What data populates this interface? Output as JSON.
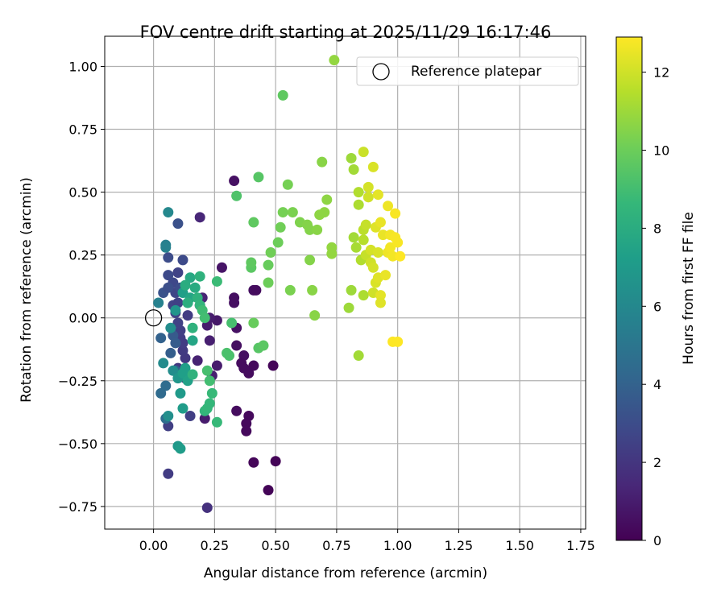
{
  "chart_data": {
    "type": "scatter",
    "title": "FOV centre drift starting at 2025/11/29 16:17:46",
    "xlabel": "Angular distance from reference (arcmin)",
    "ylabel": "Rotation from reference (arcmin)",
    "xlim": [
      -0.2,
      1.77
    ],
    "ylim": [
      -0.84,
      1.12
    ],
    "xticks": [
      0.0,
      0.25,
      0.5,
      0.75,
      1.0,
      1.25,
      1.5,
      1.75
    ],
    "xtick_labels": [
      "0.00",
      "0.25",
      "0.50",
      "0.75",
      "1.00",
      "1.25",
      "1.50",
      "1.75"
    ],
    "yticks": [
      -0.75,
      -0.5,
      -0.25,
      0.0,
      0.25,
      0.5,
      0.75,
      1.0
    ],
    "ytick_labels": [
      "−0.75",
      "−0.50",
      "−0.25",
      "0.00",
      "0.25",
      "0.50",
      "0.75",
      "1.00"
    ],
    "grid": true,
    "legend": {
      "position": "top-right",
      "entries": [
        "Reference platepar"
      ]
    },
    "reference_point": {
      "x": 0.0,
      "y": 0.0,
      "label": "Reference platepar"
    },
    "colorbar": {
      "label": "Hours from first FF file",
      "range": [
        0,
        12.9
      ],
      "ticks": [
        0,
        2,
        4,
        6,
        8,
        10,
        12
      ],
      "tick_labels": [
        "0",
        "2",
        "4",
        "6",
        "8",
        "10",
        "12"
      ],
      "colormap": "viridis"
    },
    "points": [
      {
        "x": 0.33,
        "y": 0.545,
        "h": 0.6
      },
      {
        "x": 0.28,
        "y": 0.2,
        "h": 0.7
      },
      {
        "x": 0.33,
        "y": 0.08,
        "h": 0.5
      },
      {
        "x": 0.33,
        "y": 0.06,
        "h": 0.5
      },
      {
        "x": 0.34,
        "y": -0.04,
        "h": 0.6
      },
      {
        "x": 0.37,
        "y": -0.15,
        "h": 0.5
      },
      {
        "x": 0.34,
        "y": -0.11,
        "h": 0.5
      },
      {
        "x": 0.36,
        "y": -0.18,
        "h": 0.4
      },
      {
        "x": 0.37,
        "y": -0.2,
        "h": 0.4
      },
      {
        "x": 0.39,
        "y": -0.22,
        "h": 0.4
      },
      {
        "x": 0.41,
        "y": -0.19,
        "h": 0.3
      },
      {
        "x": 0.41,
        "y": 0.11,
        "h": 0.5
      },
      {
        "x": 0.42,
        "y": 0.11,
        "h": 0.4
      },
      {
        "x": 0.39,
        "y": -0.39,
        "h": 0.3
      },
      {
        "x": 0.38,
        "y": -0.42,
        "h": 0.3
      },
      {
        "x": 0.38,
        "y": -0.45,
        "h": 0.3
      },
      {
        "x": 0.34,
        "y": -0.37,
        "h": 0.4
      },
      {
        "x": 0.41,
        "y": -0.575,
        "h": 0.2
      },
      {
        "x": 0.5,
        "y": -0.57,
        "h": 0.1
      },
      {
        "x": 0.47,
        "y": -0.685,
        "h": 0.1
      },
      {
        "x": 0.49,
        "y": -0.19,
        "h": 0.2
      },
      {
        "x": 0.26,
        "y": -0.01,
        "h": 0.8
      },
      {
        "x": 0.23,
        "y": 0.0,
        "h": 1.0
      },
      {
        "x": 0.22,
        "y": -0.03,
        "h": 1.0
      },
      {
        "x": 0.23,
        "y": -0.09,
        "h": 1.1
      },
      {
        "x": 0.26,
        "y": -0.19,
        "h": 1.0
      },
      {
        "x": 0.24,
        "y": -0.23,
        "h": 1.1
      },
      {
        "x": 0.21,
        "y": -0.4,
        "h": 1.0
      },
      {
        "x": 0.18,
        "y": -0.17,
        "h": 1.2
      },
      {
        "x": 0.19,
        "y": 0.05,
        "h": 1.2
      },
      {
        "x": 0.2,
        "y": 0.08,
        "h": 1.3
      },
      {
        "x": 0.19,
        "y": 0.4,
        "h": 1.4
      },
      {
        "x": 0.22,
        "y": -0.755,
        "h": 1.8
      },
      {
        "x": 0.06,
        "y": -0.62,
        "h": 2.3
      },
      {
        "x": 0.06,
        "y": -0.43,
        "h": 2.4
      },
      {
        "x": 0.15,
        "y": -0.39,
        "h": 2.4
      },
      {
        "x": 0.13,
        "y": -0.24,
        "h": 2.0
      },
      {
        "x": 0.1,
        "y": -0.2,
        "h": 2.1
      },
      {
        "x": 0.13,
        "y": -0.16,
        "h": 2.1
      },
      {
        "x": 0.12,
        "y": -0.13,
        "h": 2.2
      },
      {
        "x": 0.12,
        "y": -0.1,
        "h": 2.3
      },
      {
        "x": 0.11,
        "y": -0.08,
        "h": 2.3
      },
      {
        "x": 0.11,
        "y": -0.05,
        "h": 2.4
      },
      {
        "x": 0.1,
        "y": -0.02,
        "h": 2.5
      },
      {
        "x": 0.14,
        "y": 0.01,
        "h": 2.3
      },
      {
        "x": 0.09,
        "y": 0.02,
        "h": 2.6
      },
      {
        "x": 0.08,
        "y": 0.05,
        "h": 2.6
      },
      {
        "x": 0.1,
        "y": 0.06,
        "h": 2.5
      },
      {
        "x": 0.09,
        "y": 0.1,
        "h": 2.7
      },
      {
        "x": 0.08,
        "y": 0.14,
        "h": 2.8
      },
      {
        "x": 0.1,
        "y": 0.18,
        "h": 2.6
      },
      {
        "x": 0.06,
        "y": 0.17,
        "h": 2.9
      },
      {
        "x": 0.12,
        "y": 0.23,
        "h": 2.9
      },
      {
        "x": 0.06,
        "y": 0.24,
        "h": 3.0
      },
      {
        "x": 0.1,
        "y": 0.375,
        "h": 3.2
      },
      {
        "x": 0.04,
        "y": 0.1,
        "h": 3.3
      },
      {
        "x": 0.06,
        "y": 0.12,
        "h": 3.1
      },
      {
        "x": 0.11,
        "y": 0.12,
        "h": 3.0
      },
      {
        "x": 0.03,
        "y": -0.08,
        "h": 4.0
      },
      {
        "x": 0.08,
        "y": -0.07,
        "h": 3.6
      },
      {
        "x": 0.09,
        "y": -0.1,
        "h": 3.7
      },
      {
        "x": 0.07,
        "y": -0.14,
        "h": 3.8
      },
      {
        "x": 0.09,
        "y": -0.21,
        "h": 3.9
      },
      {
        "x": 0.03,
        "y": -0.3,
        "h": 4.4
      },
      {
        "x": 0.05,
        "y": -0.27,
        "h": 4.5
      },
      {
        "x": 0.05,
        "y": -0.4,
        "h": 4.6
      },
      {
        "x": 0.02,
        "y": 0.06,
        "h": 5.6
      },
      {
        "x": 0.05,
        "y": 0.29,
        "h": 5.5
      },
      {
        "x": 0.05,
        "y": 0.28,
        "h": 5.6
      },
      {
        "x": 0.06,
        "y": 0.42,
        "h": 6.0
      },
      {
        "x": 0.04,
        "y": -0.18,
        "h": 6.2
      },
      {
        "x": 0.06,
        "y": -0.39,
        "h": 6.4
      },
      {
        "x": 0.07,
        "y": -0.04,
        "h": 6.3
      },
      {
        "x": 0.08,
        "y": -0.21,
        "h": 6.3
      },
      {
        "x": 0.09,
        "y": 0.03,
        "h": 6.7
      },
      {
        "x": 0.1,
        "y": -0.24,
        "h": 6.8
      },
      {
        "x": 0.11,
        "y": -0.3,
        "h": 7.0
      },
      {
        "x": 0.12,
        "y": -0.36,
        "h": 7.1
      },
      {
        "x": 0.1,
        "y": -0.51,
        "h": 6.9
      },
      {
        "x": 0.11,
        "y": -0.52,
        "h": 7.1
      },
      {
        "x": 0.12,
        "y": -0.22,
        "h": 7.3
      },
      {
        "x": 0.13,
        "y": -0.2,
        "h": 7.3
      },
      {
        "x": 0.14,
        "y": -0.25,
        "h": 7.4
      },
      {
        "x": 0.14,
        "y": 0.06,
        "h": 7.4
      },
      {
        "x": 0.12,
        "y": 0.1,
        "h": 7.3
      },
      {
        "x": 0.15,
        "y": 0.08,
        "h": 7.6
      },
      {
        "x": 0.16,
        "y": -0.09,
        "h": 7.6
      },
      {
        "x": 0.15,
        "y": 0.16,
        "h": 7.8
      },
      {
        "x": 0.17,
        "y": 0.12,
        "h": 7.9
      },
      {
        "x": 0.19,
        "y": 0.165,
        "h": 8.3
      },
      {
        "x": 0.13,
        "y": 0.13,
        "h": 8.0
      },
      {
        "x": 0.14,
        "y": 0.06,
        "h": 8.1
      },
      {
        "x": 0.16,
        "y": -0.04,
        "h": 8.3
      },
      {
        "x": 0.18,
        "y": 0.08,
        "h": 8.3
      },
      {
        "x": 0.19,
        "y": 0.05,
        "h": 8.5
      },
      {
        "x": 0.16,
        "y": -0.225,
        "h": 8.3
      },
      {
        "x": 0.21,
        "y": -0.37,
        "h": 8.5
      },
      {
        "x": 0.22,
        "y": -0.36,
        "h": 8.6
      },
      {
        "x": 0.23,
        "y": -0.34,
        "h": 8.6
      },
      {
        "x": 0.24,
        "y": -0.3,
        "h": 8.7
      },
      {
        "x": 0.26,
        "y": -0.415,
        "h": 8.7
      },
      {
        "x": 0.26,
        "y": 0.145,
        "h": 8.8
      },
      {
        "x": 0.2,
        "y": 0.03,
        "h": 8.9
      },
      {
        "x": 0.21,
        "y": 0.0,
        "h": 9.0
      },
      {
        "x": 0.23,
        "y": -0.25,
        "h": 9.0
      },
      {
        "x": 0.22,
        "y": -0.21,
        "h": 9.1
      },
      {
        "x": 0.32,
        "y": -0.02,
        "h": 9.1
      },
      {
        "x": 0.3,
        "y": -0.14,
        "h": 9.2
      },
      {
        "x": 0.31,
        "y": -0.15,
        "h": 9.2
      },
      {
        "x": 0.34,
        "y": 0.485,
        "h": 9.3
      },
      {
        "x": 0.43,
        "y": 0.56,
        "h": 9.5
      },
      {
        "x": 0.4,
        "y": 0.2,
        "h": 9.6
      },
      {
        "x": 0.4,
        "y": 0.22,
        "h": 9.7
      },
      {
        "x": 0.43,
        "y": -0.12,
        "h": 9.5
      },
      {
        "x": 0.45,
        "y": -0.11,
        "h": 9.6
      },
      {
        "x": 0.41,
        "y": -0.02,
        "h": 9.9
      },
      {
        "x": 0.41,
        "y": 0.38,
        "h": 9.7
      },
      {
        "x": 0.47,
        "y": 0.21,
        "h": 9.9
      },
      {
        "x": 0.47,
        "y": 0.14,
        "h": 10.0
      },
      {
        "x": 0.48,
        "y": 0.26,
        "h": 10.1
      },
      {
        "x": 0.51,
        "y": 0.3,
        "h": 10.0
      },
      {
        "x": 0.52,
        "y": 0.36,
        "h": 10.1
      },
      {
        "x": 0.53,
        "y": 0.42,
        "h": 10.2
      },
      {
        "x": 0.53,
        "y": 0.885,
        "h": 9.7
      },
      {
        "x": 0.55,
        "y": 0.53,
        "h": 10.2
      },
      {
        "x": 0.57,
        "y": 0.42,
        "h": 10.3
      },
      {
        "x": 0.56,
        "y": 0.11,
        "h": 10.3
      },
      {
        "x": 0.6,
        "y": 0.38,
        "h": 10.4
      },
      {
        "x": 0.63,
        "y": 0.37,
        "h": 10.5
      },
      {
        "x": 0.64,
        "y": 0.35,
        "h": 10.5
      },
      {
        "x": 0.64,
        "y": 0.23,
        "h": 10.5
      },
      {
        "x": 0.65,
        "y": 0.11,
        "h": 10.6
      },
      {
        "x": 0.66,
        "y": 0.01,
        "h": 10.6
      },
      {
        "x": 0.67,
        "y": 0.35,
        "h": 10.6
      },
      {
        "x": 0.68,
        "y": 0.41,
        "h": 10.7
      },
      {
        "x": 0.69,
        "y": 0.62,
        "h": 10.6
      },
      {
        "x": 0.7,
        "y": 0.42,
        "h": 10.7
      },
      {
        "x": 0.71,
        "y": 0.47,
        "h": 10.7
      },
      {
        "x": 0.73,
        "y": 0.255,
        "h": 10.8
      },
      {
        "x": 0.73,
        "y": 0.28,
        "h": 10.8
      },
      {
        "x": 0.74,
        "y": 1.025,
        "h": 10.8
      },
      {
        "x": 0.8,
        "y": 0.04,
        "h": 11.0
      },
      {
        "x": 0.81,
        "y": 0.11,
        "h": 11.0
      },
      {
        "x": 0.81,
        "y": 0.635,
        "h": 11.0
      },
      {
        "x": 0.82,
        "y": 0.59,
        "h": 11.1
      },
      {
        "x": 0.82,
        "y": 0.32,
        "h": 11.1
      },
      {
        "x": 0.83,
        "y": 0.28,
        "h": 11.2
      },
      {
        "x": 0.84,
        "y": 0.45,
        "h": 11.3
      },
      {
        "x": 0.84,
        "y": 0.5,
        "h": 11.4
      },
      {
        "x": 0.85,
        "y": 0.23,
        "h": 11.4
      },
      {
        "x": 0.84,
        "y": -0.15,
        "h": 11.1
      },
      {
        "x": 0.86,
        "y": 0.09,
        "h": 11.3
      },
      {
        "x": 0.86,
        "y": 0.31,
        "h": 11.5
      },
      {
        "x": 0.86,
        "y": 0.35,
        "h": 11.6
      },
      {
        "x": 0.86,
        "y": 0.66,
        "h": 11.9
      },
      {
        "x": 0.87,
        "y": 0.37,
        "h": 11.8
      },
      {
        "x": 0.87,
        "y": 0.25,
        "h": 11.8
      },
      {
        "x": 0.88,
        "y": 0.48,
        "h": 12.0
      },
      {
        "x": 0.88,
        "y": 0.52,
        "h": 12.1
      },
      {
        "x": 0.89,
        "y": 0.22,
        "h": 12.0
      },
      {
        "x": 0.89,
        "y": 0.27,
        "h": 12.1
      },
      {
        "x": 0.9,
        "y": 0.2,
        "h": 12.1
      },
      {
        "x": 0.9,
        "y": 0.6,
        "h": 12.2
      },
      {
        "x": 0.9,
        "y": 0.1,
        "h": 12.0
      },
      {
        "x": 0.91,
        "y": 0.14,
        "h": 12.2
      },
      {
        "x": 0.91,
        "y": 0.36,
        "h": 12.3
      },
      {
        "x": 0.92,
        "y": 0.16,
        "h": 12.3
      },
      {
        "x": 0.92,
        "y": 0.26,
        "h": 12.2
      },
      {
        "x": 0.92,
        "y": 0.49,
        "h": 12.4
      },
      {
        "x": 0.93,
        "y": 0.09,
        "h": 12.4
      },
      {
        "x": 0.93,
        "y": 0.06,
        "h": 12.3
      },
      {
        "x": 0.93,
        "y": 0.38,
        "h": 12.5
      },
      {
        "x": 0.94,
        "y": 0.33,
        "h": 12.5
      },
      {
        "x": 0.95,
        "y": 0.17,
        "h": 12.5
      },
      {
        "x": 0.96,
        "y": 0.445,
        "h": 12.6
      },
      {
        "x": 0.96,
        "y": 0.26,
        "h": 12.6
      },
      {
        "x": 0.97,
        "y": 0.33,
        "h": 12.7
      },
      {
        "x": 0.97,
        "y": 0.28,
        "h": 12.7
      },
      {
        "x": 0.98,
        "y": 0.245,
        "h": 12.7
      },
      {
        "x": 0.99,
        "y": 0.415,
        "h": 12.8
      },
      {
        "x": 0.99,
        "y": 0.32,
        "h": 12.8
      },
      {
        "x": 1.0,
        "y": 0.3,
        "h": 12.8
      },
      {
        "x": 1.01,
        "y": 0.245,
        "h": 12.9
      },
      {
        "x": 0.98,
        "y": -0.095,
        "h": 12.9
      },
      {
        "x": 1.0,
        "y": -0.095,
        "h": 12.9
      }
    ]
  }
}
